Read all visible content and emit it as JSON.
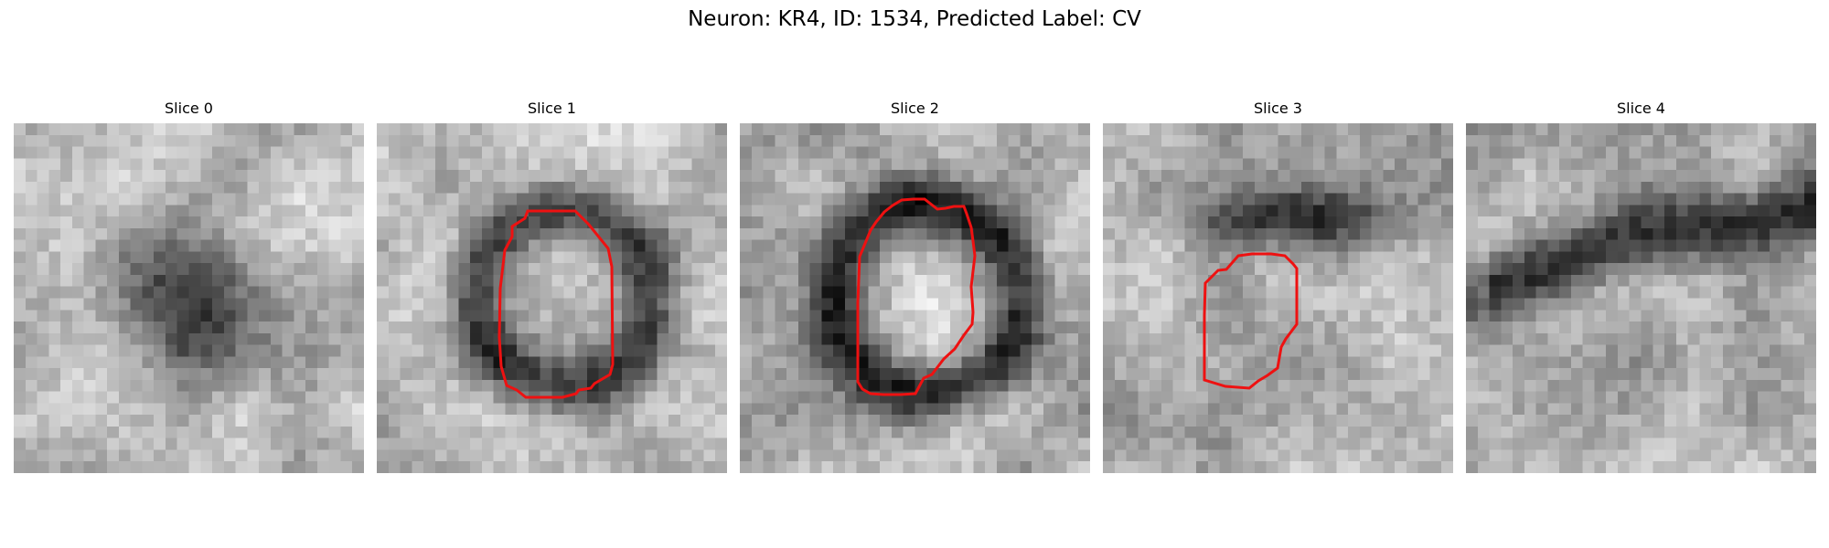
{
  "title": "Neuron: KR4, ID: 1534, Predicted Label: CV",
  "colors": {
    "outline": "#ee1111"
  },
  "panels": [
    {
      "label": "Slice 0",
      "has_outline": false
    },
    {
      "label": "Slice 1",
      "has_outline": true
    },
    {
      "label": "Slice 2",
      "has_outline": true
    },
    {
      "label": "Slice 3",
      "has_outline": true
    },
    {
      "label": "Slice 4",
      "has_outline": false
    }
  ]
}
